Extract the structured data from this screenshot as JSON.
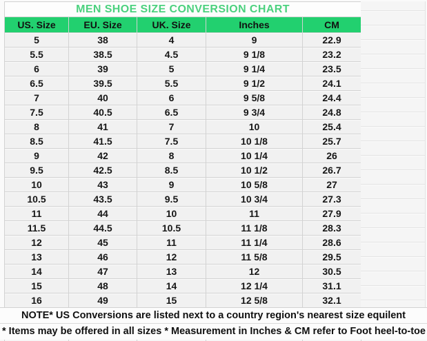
{
  "chart_data": {
    "type": "table",
    "title": "MEN SHOE SIZE CONVERSION CHART",
    "columns": [
      "US. Size",
      "EU. Size",
      "UK. Size",
      "Inches",
      "CM"
    ],
    "rows": [
      [
        "5",
        "38",
        "4",
        "9",
        "22.9"
      ],
      [
        "5.5",
        "38.5",
        "4.5",
        "9 1/8",
        "23.2"
      ],
      [
        "6",
        "39",
        "5",
        "9 1/4",
        "23.5"
      ],
      [
        "6.5",
        "39.5",
        "5.5",
        "9 1/2",
        "24.1"
      ],
      [
        "7",
        "40",
        "6",
        "9 5/8",
        "24.4"
      ],
      [
        "7.5",
        "40.5",
        "6.5",
        "9 3/4",
        "24.8"
      ],
      [
        "8",
        "41",
        "7",
        "10",
        "25.4"
      ],
      [
        "8.5",
        "41.5",
        "7.5",
        "10 1/8",
        "25.7"
      ],
      [
        "9",
        "42",
        "8",
        "10 1/4",
        "26"
      ],
      [
        "9.5",
        "42.5",
        "8.5",
        "10 1/2",
        "26.7"
      ],
      [
        "10",
        "43",
        "9",
        "10 5/8",
        "27"
      ],
      [
        "10.5",
        "43.5",
        "9.5",
        "10 3/4",
        "27.3"
      ],
      [
        "11",
        "44",
        "10",
        "11",
        "27.9"
      ],
      [
        "11.5",
        "44.5",
        "10.5",
        "11 1/8",
        "28.3"
      ],
      [
        "12",
        "45",
        "11",
        "11 1/4",
        "28.6"
      ],
      [
        "13",
        "46",
        "12",
        "11 5/8",
        "29.5"
      ],
      [
        "14",
        "47",
        "13",
        "12",
        "30.5"
      ],
      [
        "15",
        "48",
        "14",
        "12 1/4",
        "31.1"
      ],
      [
        "16",
        "49",
        "15",
        "12 5/8",
        "32.1"
      ]
    ],
    "notes": {
      "line1": "NOTE* US Conversions are listed next to a country region's nearest size equilent",
      "line2": "* Items may be offered in all sizes * Measurement in Inches & CM refer to Foot heel-to-toe"
    },
    "legend_position": "none",
    "grid": true
  },
  "colors": {
    "header_bg": "#22d06f",
    "title_text": "#4bd17e",
    "row_bg": "#f1f1f1",
    "grid_line": "#d2d2d2",
    "text": "#161616"
  }
}
